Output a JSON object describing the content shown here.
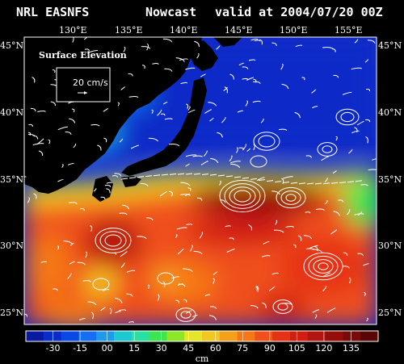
{
  "header": {
    "source": "NRL EASNFS",
    "product": "Nowcast",
    "valid": "valid at 2004/07/20 00Z"
  },
  "map": {
    "lon_labels": [
      "130°E",
      "135°E",
      "140°E",
      "145°E",
      "150°E",
      "155°E"
    ],
    "lat_labels": [
      "45°N",
      "40°N",
      "35°N",
      "30°N",
      "25°N"
    ],
    "extent": {
      "lon": [
        125.5,
        158.0
      ],
      "lat": [
        23.5,
        45.0
      ]
    }
  },
  "legend": {
    "title": "Surface Elevation",
    "vector_scale": "20 cm/s"
  },
  "colorbar": {
    "ticks": [
      "-30",
      "-15",
      "00",
      "15",
      "30",
      "45",
      "60",
      "75",
      "90",
      "105",
      "120",
      "135"
    ],
    "unit": "cm",
    "colors": [
      "#0a1aa0",
      "#0a2cc8",
      "#0a48e6",
      "#1470f0",
      "#1e9aea",
      "#1ec8d2",
      "#28e0a0",
      "#3ce650",
      "#8ee628",
      "#e6e628",
      "#f0c820",
      "#f5a01a",
      "#f57814",
      "#f0501a",
      "#e63214",
      "#d21e12",
      "#b41410",
      "#960e0c",
      "#780a08",
      "#5a0606"
    ],
    "land_color": "#000000",
    "vector_color": "#ffffff"
  }
}
